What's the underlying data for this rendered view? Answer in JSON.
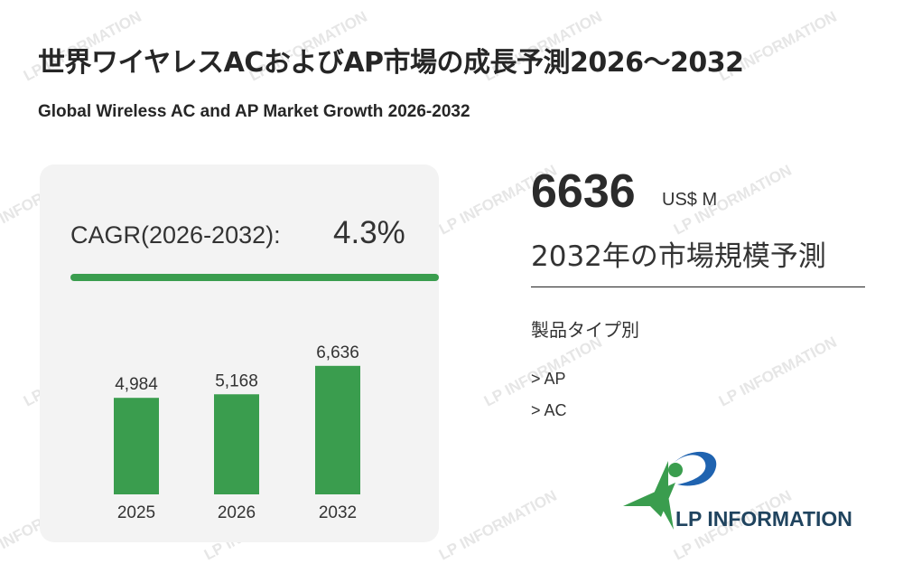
{
  "header": {
    "title_jp": "世界ワイヤレスACおよびAP市場の成長予測2026～2032",
    "title_en": "Global Wireless AC and AP Market Growth 2026-2032"
  },
  "cagr": {
    "label": "CAGR(2026-2032):",
    "value": "4.3%"
  },
  "chart_data": {
    "type": "bar",
    "categories": [
      "2025",
      "2026",
      "2032"
    ],
    "values": [
      4984,
      5168,
      6636
    ],
    "value_labels": [
      "4,984",
      "5,168",
      "6,636"
    ],
    "ylim": [
      0,
      7000
    ],
    "bar_color": "#3a9d4e"
  },
  "forecast": {
    "value": "6636",
    "unit": "US$ M",
    "label": "2032年の市場規模予測"
  },
  "segments": {
    "title": "製品タイプ別",
    "items": [
      "> AP",
      "> AC"
    ]
  },
  "logo": {
    "text": "LP INFORMATION",
    "colors": {
      "green": "#3a9d4e",
      "blue": "#1f63b0",
      "text": "#20445f"
    }
  },
  "watermark": {
    "text": "LP INFORMATION"
  }
}
